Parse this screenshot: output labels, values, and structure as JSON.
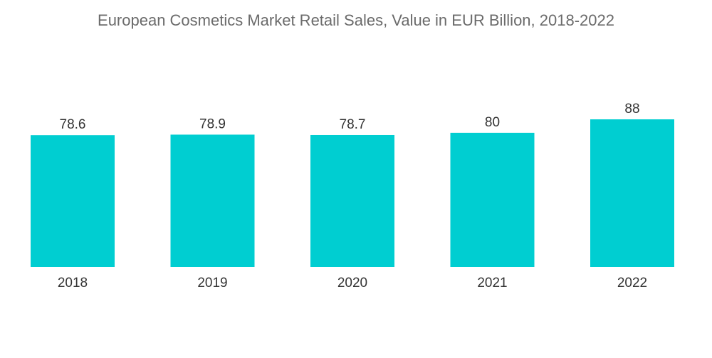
{
  "chart_data": {
    "type": "bar",
    "title": "European Cosmetics Market Retail Sales, Value in EUR Billion, 2018-2022",
    "categories": [
      "2018",
      "2019",
      "2020",
      "2021",
      "2022"
    ],
    "values": [
      78.6,
      78.9,
      78.7,
      80,
      88
    ],
    "value_labels": [
      "78.6",
      "78.9",
      "78.7",
      "80",
      "88"
    ],
    "xlabel": "",
    "ylabel": "",
    "ylim": [
      0,
      88
    ],
    "grid": false,
    "legend": "none",
    "colors": {
      "bar": "#00ced1"
    }
  }
}
